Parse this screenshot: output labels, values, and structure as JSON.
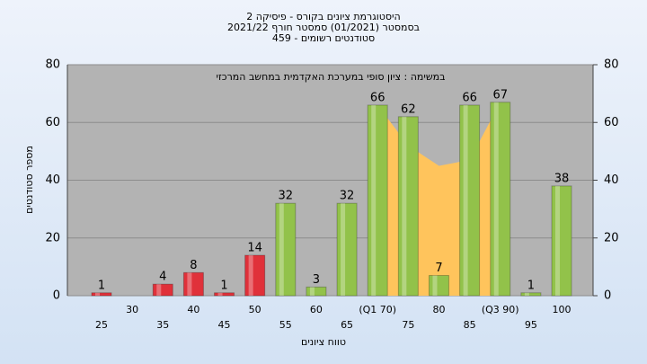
{
  "chart_data": {
    "type": "bar",
    "title": "היסטוגרמת ציונים בקורס - פיסיקה 2",
    "subtitle": "בסמסטר  (01/2021)  סמסטר חורף  2021/22",
    "subtitle2": "סטודנטים רשומים - 459",
    "annotation": "במשימה : ציון סופי במערכת האקדמית במחשב המרכזי",
    "x_label": "טווח ציונים",
    "y_label": "מספר סטודנטים",
    "categories": [
      "25",
      "30",
      "35",
      "40",
      "45",
      "50",
      "55",
      "60",
      "65",
      "(Q1 70)",
      "75",
      "80",
      "85",
      "(Q3 90)",
      "95",
      "100"
    ],
    "values": [
      1,
      0,
      4,
      8,
      1,
      14,
      32,
      3,
      32,
      66,
      62,
      7,
      66,
      67,
      1,
      38
    ],
    "colors": [
      "#e0313a",
      "#e0313a",
      "#e0313a",
      "#e0313a",
      "#e0313a",
      "#e0313a",
      "#92c24a",
      "#92c24a",
      "#92c24a",
      "#92c24a",
      "#92c24a",
      "#92c24a",
      "#92c24a",
      "#92c24a",
      "#92c24a",
      "#92c24a"
    ],
    "area": {
      "color": "#ffc45c",
      "values": [
        null,
        null,
        null,
        null,
        null,
        null,
        null,
        null,
        null,
        66,
        52,
        45,
        47,
        67,
        null,
        null
      ]
    },
    "ylim": [
      0,
      80
    ],
    "yticks": [
      0,
      20,
      40,
      60,
      80
    ],
    "grid": true
  }
}
